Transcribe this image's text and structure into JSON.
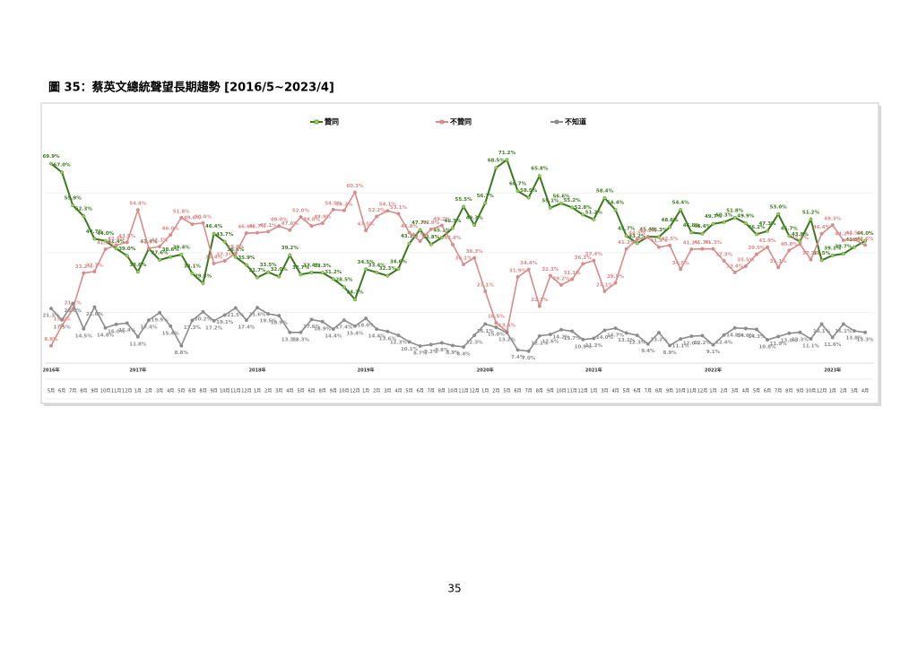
{
  "page_title": "圖 35：蔡英文總統聲望長期趨勢  [2016/5~2023/4]",
  "page_number": "35",
  "chart_data": {
    "type": "line",
    "years": [
      {
        "name": "2016年",
        "start": 0
      },
      {
        "name": "2017年",
        "start": 8
      },
      {
        "name": "2018年",
        "start": 19
      },
      {
        "name": "2019年",
        "start": 29
      },
      {
        "name": "2020年",
        "start": 40
      },
      {
        "name": "2021年",
        "start": 50
      },
      {
        "name": "2022年",
        "start": 61
      },
      {
        "name": "2023年",
        "start": 72
      }
    ],
    "categories": [
      "5月",
      "6月",
      "7月",
      "8月",
      "9月",
      "10月",
      "11月",
      "12月",
      "1月",
      "2月",
      "3月",
      "4月",
      "5月",
      "6月",
      "8月",
      "9月",
      "10月",
      "11月",
      "12月",
      "1月",
      "2月",
      "3月",
      "4月",
      "5月",
      "6月",
      "8月",
      "9月",
      "10月",
      "12月",
      "1月",
      "2月",
      "3月",
      "4月",
      "5月",
      "6月",
      "7月",
      "8月",
      "10月",
      "11月",
      "12月",
      "1月",
      "2月",
      "5月",
      "6月",
      "7月",
      "8月",
      "9月",
      "10月",
      "11月",
      "12月",
      "1月",
      "3月",
      "4月",
      "5月",
      "6月",
      "7月",
      "8月",
      "9月",
      "10月",
      "11月",
      "12月",
      "1月",
      "2月",
      "3月",
      "4月",
      "5月",
      "6月",
      "7月",
      "8月",
      "9月",
      "10月",
      "12月",
      "1月",
      "2月",
      "3月",
      "4月"
    ],
    "ylim": [
      0,
      80
    ],
    "yticks": [
      20,
      40,
      60
    ],
    "grid": true,
    "series": [
      {
        "name": "贊同",
        "color": "#3b7a1e",
        "marker": "#9bd05a",
        "values": [
          69.9,
          67.0,
          55.9,
          52.3,
          44.7,
          44.0,
          41.4,
          39.0,
          33.6,
          41.4,
          37.6,
          38.6,
          39.4,
          33.1,
          29.8,
          46.4,
          43.7,
          38.6,
          35.9,
          31.7,
          33.5,
          32.0,
          39.2,
          32.7,
          33.4,
          33.3,
          31.2,
          28.5,
          24.3,
          34.5,
          33.4,
          32.3,
          34.6,
          43.1,
          47.7,
          42.8,
          45.1,
          48.3,
          55.5,
          49.3,
          56.7,
          68.5,
          71.2,
          60.7,
          58.5,
          65.8,
          55.1,
          56.6,
          55.2,
          52.8,
          51.2,
          58.4,
          54.4,
          45.7,
          43.2,
          45.4,
          45.3,
          48.6,
          54.4,
          46.8,
          46.4,
          49.7,
          50.3,
          51.8,
          49.9,
          46.2,
          47.3,
          53.0,
          45.7,
          43.8,
          51.2,
          37.5,
          39.1,
          39.7,
          41.9,
          44.0
        ],
        "value_labels": [
          "69.9%",
          "67.0%",
          "55.9%",
          "52.3%",
          "44.7%",
          "44.0%",
          "41.4%",
          "39.0%",
          "33.6%",
          "41.4%",
          "37.6%",
          "38.6%",
          "39.4%",
          "33.1%",
          "29.8%",
          "46.4%",
          "43.7%",
          "38.6%",
          "35.9%",
          "31.7%",
          "33.5%",
          "32.0%",
          "39.2%",
          "32.7%",
          "33.4%",
          "33.3%",
          "31.2%",
          "28.5%",
          "24.3%",
          "34.5%",
          "33.4%",
          "32.3%",
          "34.6%",
          "43.1%",
          "47.7%",
          "42.8%",
          "45.1%",
          "48.3%",
          "55.5%",
          "49.3%",
          "56.7%",
          "68.5%",
          "71.2%",
          "60.7%",
          "58.5%",
          "65.8%",
          "55.1%",
          "56.6%",
          "55.2%",
          "52.8%",
          "51.2%",
          "58.4%",
          "54.4%",
          "45.7%",
          "43.2%",
          "45.4%",
          "45.3%",
          "48.6%",
          "54.4%",
          "46.8%",
          "46.4%",
          "49.7%",
          "50.3%",
          "51.8%",
          "49.9%",
          "46.2%",
          "47.3%",
          "53.0%",
          "45.7%",
          "43.8%",
          "51.2%",
          "37.5%",
          "39.1%",
          "39.7%",
          "41.9%",
          "44.0%"
        ]
      },
      {
        "name": "不贊同",
        "color": "#d98a8a",
        "marker": "#d98a8a",
        "values": [
          8.8,
          15.6,
          21.1,
          33.2,
          33.7,
          41.2,
          42.6,
          43.5,
          54.4,
          41.5,
          42.1,
          46.0,
          51.8,
          49.6,
          50.0,
          36.4,
          37.3,
          39.8,
          46.6,
          46.7,
          47.1,
          49.0,
          47.6,
          52.0,
          49.0,
          49.9,
          54.5,
          54.2,
          60.3,
          47.5,
          52.2,
          54.1,
          53.1,
          46.8,
          43.9,
          47.9,
          49.2,
          42.8,
          36.1,
          38.3,
          27.1,
          16.5,
          13.6,
          31.9,
          34.4,
          22.1,
          32.3,
          29.2,
          31.1,
          36.3,
          37.4,
          27.1,
          29.9,
          41.3,
          44.5,
          45.2,
          41.9,
          42.5,
          34.5,
          41.2,
          41.3,
          41.3,
          37.3,
          33.4,
          35.5,
          39.5,
          41.9,
          35.1,
          40.8,
          42.9,
          37.7,
          46.4,
          49.3,
          44.2,
          44.5,
          42.6
        ],
        "value_labels": [
          "8.8%",
          "15.6%",
          "21.1%",
          "33.2%",
          "33.7%",
          "41.2%",
          "42.6%",
          "43.5%",
          "54.4%",
          "41.5%",
          "42.1%",
          "46.0%",
          "51.8%",
          "49.6%",
          "50.0%",
          "36.4%",
          "37.3%",
          "39.8%",
          "46.6%",
          "46.7%",
          "47.1%",
          "49.0%",
          "47.6%",
          "52.0%",
          "49.0%",
          "49.9%",
          "54.5%",
          "54.2%",
          "60.3%",
          "47.5%",
          "52.2%",
          "54.1%",
          "53.1%",
          "46.8%",
          "43.9%",
          "47.9%",
          "49.2%",
          "42.8%",
          "36.1%",
          "38.3%",
          "27.1%",
          "16.5%",
          "13.6%",
          "31.9%",
          "34.4%",
          "22.1%",
          "32.3%",
          "29.2%",
          "31.1%",
          "36.3%",
          "37.4%",
          "27.1%",
          "29.9%",
          "41.3%",
          "44.5%",
          "45.2%",
          "41.9%",
          "42.5%",
          "34.5%",
          "41.2%",
          "41.3%",
          "41.3%",
          "37.3%",
          "33.4%",
          "35.5%",
          "39.5%",
          "41.9%",
          "35.1%",
          "40.8%",
          "42.9%",
          "37.7%",
          "46.4%",
          "49.3%",
          "44.2%",
          "44.5%",
          "42.6%"
        ]
      },
      {
        "name": "不知道",
        "color": "#8c8c8c",
        "marker": "#8c8c8c",
        "values": [
          21.3,
          17.5,
          23.0,
          14.5,
          21.8,
          14.8,
          16.0,
          16.4,
          11.8,
          17.4,
          19.9,
          15.4,
          8.8,
          17.3,
          20.2,
          17.2,
          19.1,
          21.5,
          17.4,
          21.6,
          19.5,
          18.9,
          13.3,
          13.3,
          17.6,
          16.9,
          14.4,
          17.4,
          15.4,
          18.0,
          14.4,
          13.6,
          12.3,
          10.1,
          8.7,
          9.2,
          9.8,
          8.9,
          8.4,
          12.3,
          16.1,
          15.0,
          13.2,
          7.4,
          7.0,
          12.1,
          12.6,
          14.2,
          13.7,
          10.9,
          11.3,
          14.0,
          14.7,
          13.1,
          12.3,
          9.4,
          13.2,
          8.9,
          11.1,
          12.0,
          12.2,
          9.1,
          12.4,
          14.8,
          14.6,
          14.3,
          10.8,
          11.9,
          13.0,
          13.3,
          11.1,
          16.1,
          11.6,
          16.1,
          13.8,
          13.3
        ],
        "value_labels": [
          "21.3%",
          "17.5%",
          "23.0%",
          "14.5%",
          "21.8%",
          "14.8%",
          "16.0%",
          "16.4%",
          "11.8%",
          "17.4%",
          "19.9%",
          "15.4%",
          "8.8%",
          "17.3%",
          "20.2%",
          "17.2%",
          "19.1%",
          "21.5%",
          "17.4%",
          "21.6%",
          "19.5%",
          "18.9%",
          "13.3%",
          "13.3%",
          "17.6%",
          "16.9%",
          "14.4%",
          "17.4%",
          "15.4%",
          "18.0%",
          "14.4%",
          "13.6%",
          "12.3%",
          "10.1%",
          "8.7%",
          "9.2%",
          "9.8%",
          "8.9%",
          "8.4%",
          "12.3%",
          "16.1%",
          "15.0%",
          "13.2%",
          "7.4%",
          "7.0%",
          "12.1%",
          "12.6%",
          "14.2%",
          "13.7%",
          "10.9%",
          "11.3%",
          "14.0%",
          "14.7%",
          "13.1%",
          "12.3%",
          "9.4%",
          "13.2%",
          "8.9%",
          "11.1%",
          "12.0%",
          "12.2%",
          "9.1%",
          "12.4%",
          "14.8%",
          "14.6%",
          "14.3%",
          "10.8%",
          "11.9%",
          "13.0%",
          "13.3%",
          "11.1%",
          "16.1%",
          "11.6%",
          "16.1%",
          "13.8%",
          "13.3%"
        ]
      }
    ]
  }
}
